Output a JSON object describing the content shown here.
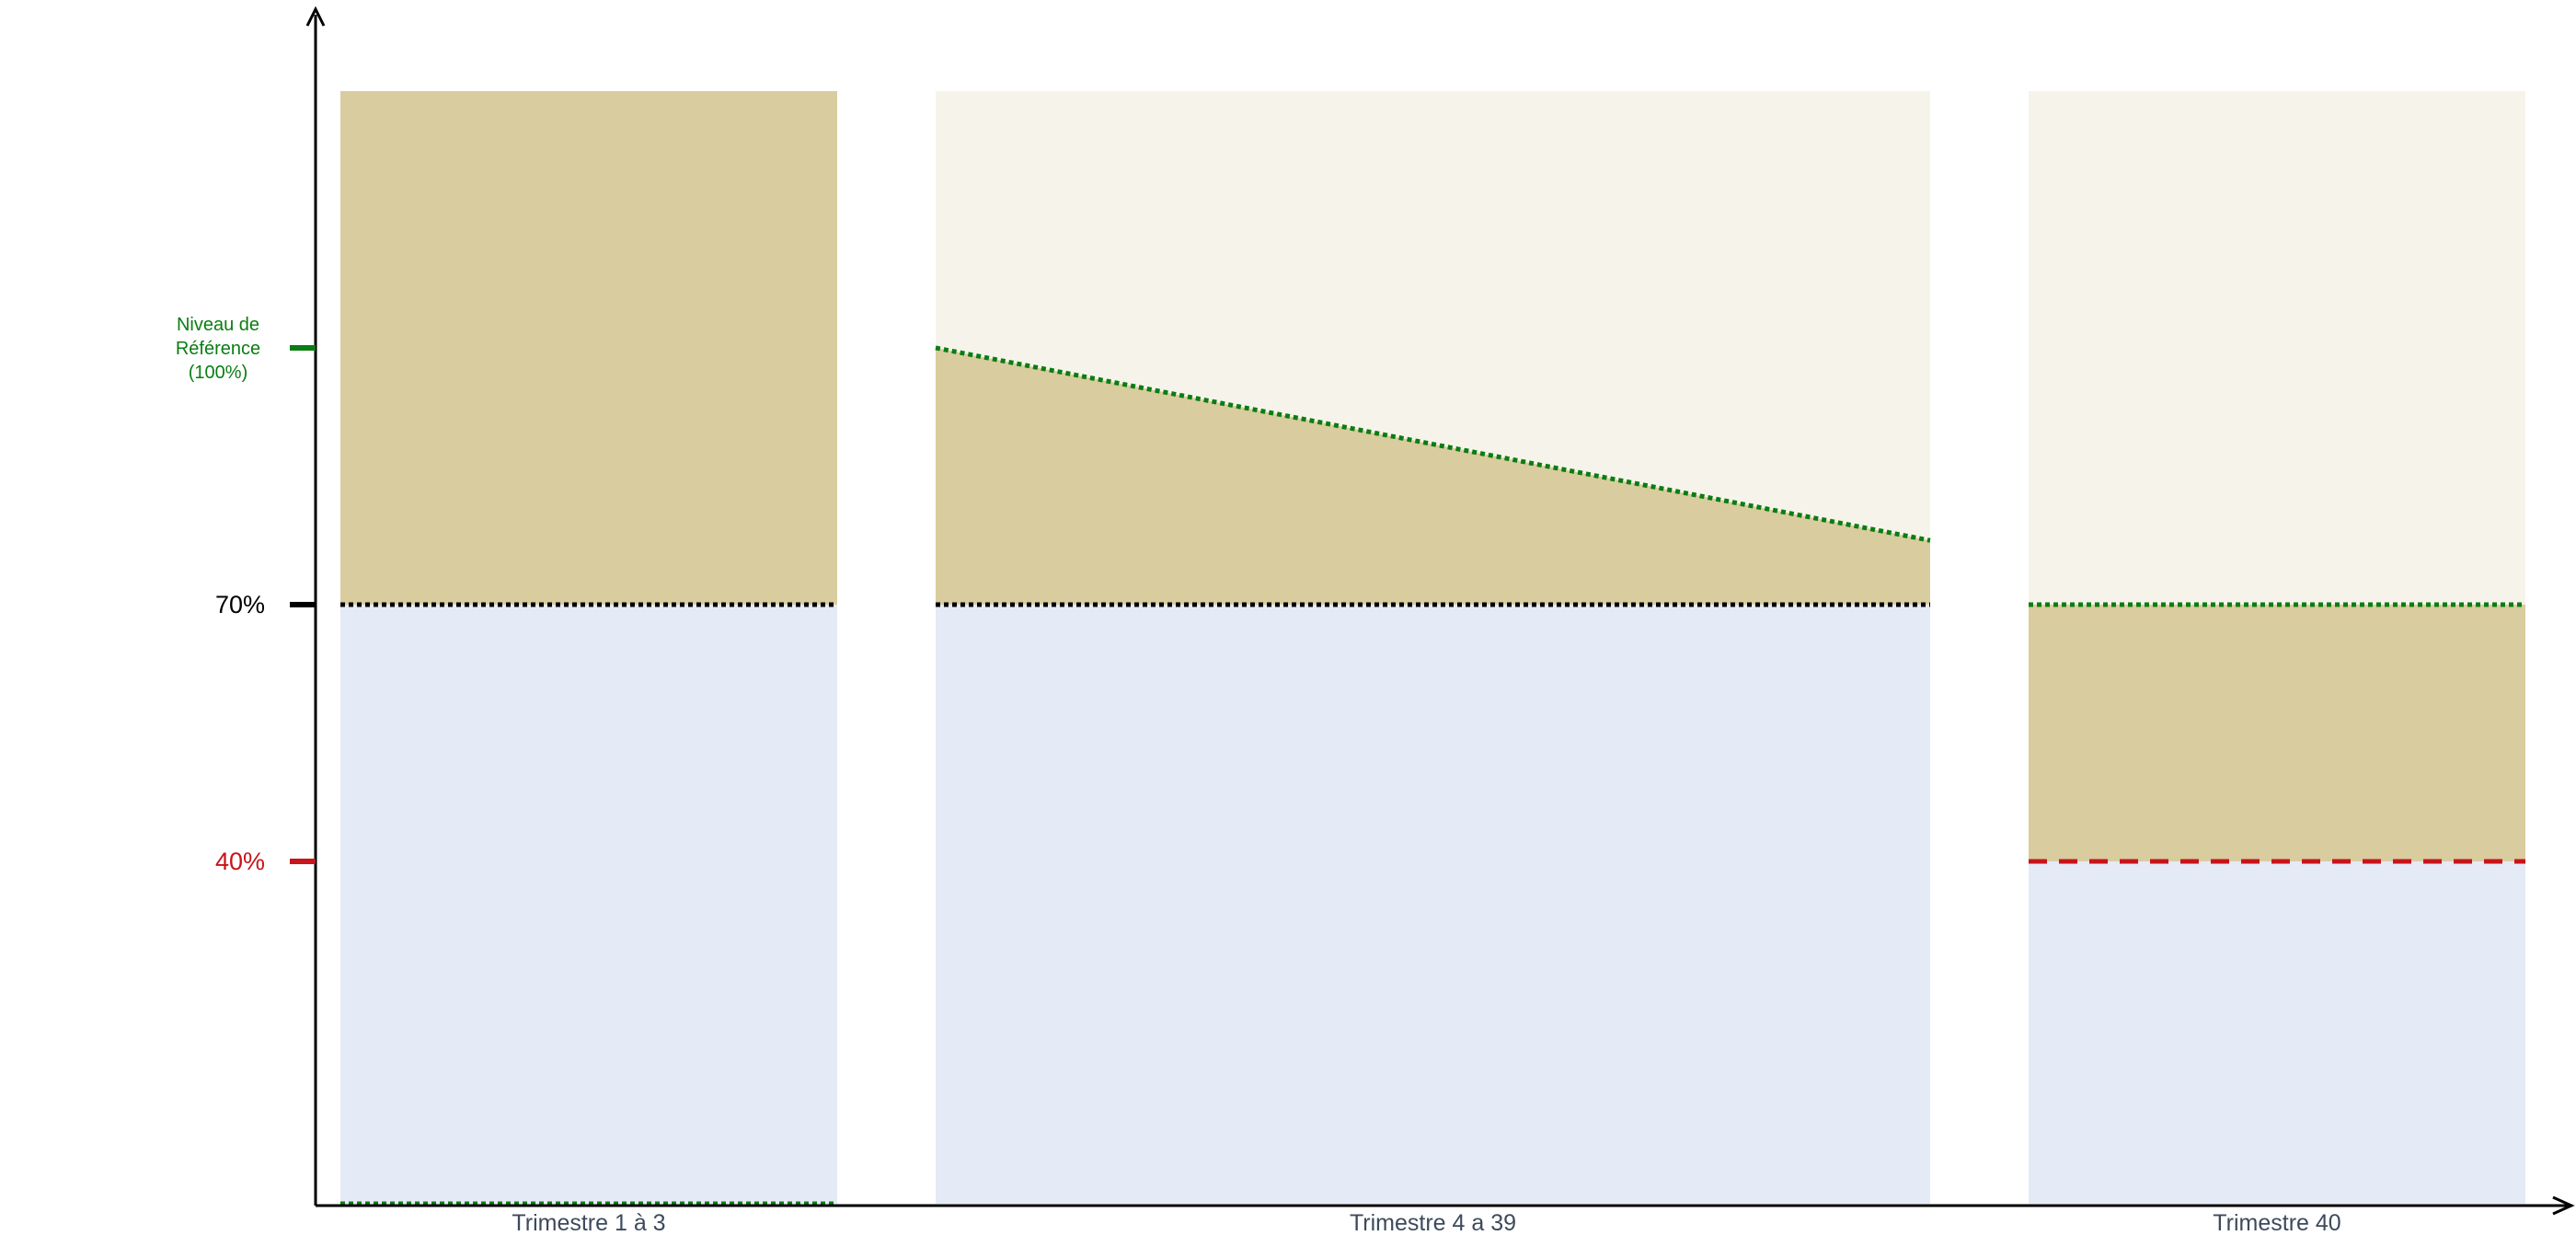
{
  "colors": {
    "axis": "#000000",
    "blue_zone": "#e4eaf6",
    "tan_zone": "#d9cc9f",
    "light_zone": "#f6f4ea",
    "reference_line": "#0a7d12",
    "threshold_70": "#000000",
    "threshold_40": "#c8141a",
    "category_text": "#3d4a5c"
  },
  "y_axis": {
    "ticks": [
      {
        "value": 100,
        "label_lines": [
          "Niveau de",
          "Référence",
          "(100%)"
        ],
        "color": "#0a7d12"
      },
      {
        "value": 70,
        "label_lines": [
          "70%"
        ],
        "color": "#000000"
      },
      {
        "value": 40,
        "label_lines": [
          "40%"
        ],
        "color": "#c8141a"
      }
    ],
    "range": [
      0,
      130
    ]
  },
  "chart_data": {
    "type": "area",
    "y_unit": "% of reference level",
    "ylim": [
      0,
      130
    ],
    "categories": [
      "Trimestre 1 à 3",
      "Trimestre 4 a 39",
      "Trimestre 40"
    ],
    "series": [
      {
        "name": "",
        "values": [
          130,
          100,
          70
        ]
      },
      {
        "name": "",
        "values": [
          70,
          70,
          40
        ]
      }
    ]
  },
  "panels": [
    {
      "label": "Trimestre 1 à 3",
      "top_value": 130,
      "tan_start": 130,
      "tan_end": 130,
      "floor_value": 70,
      "floor_style": "black-dotted",
      "ref_start": 0,
      "ref_end": 0,
      "ref_visible": true
    },
    {
      "label": "Trimestre 4 a 39",
      "top_value": 130,
      "tan_start": 100,
      "tan_end": 77.5,
      "floor_value": 70,
      "floor_style": "black-dotted",
      "ref_start": 100,
      "ref_end": 77.5,
      "ref_visible": true
    },
    {
      "label": "Trimestre 40",
      "top_value": 130,
      "tan_start": 70,
      "tan_end": 70,
      "floor_value": 40,
      "floor_style": "red-dashed",
      "ref_start": 70,
      "ref_end": 70,
      "ref_visible": true
    }
  ]
}
